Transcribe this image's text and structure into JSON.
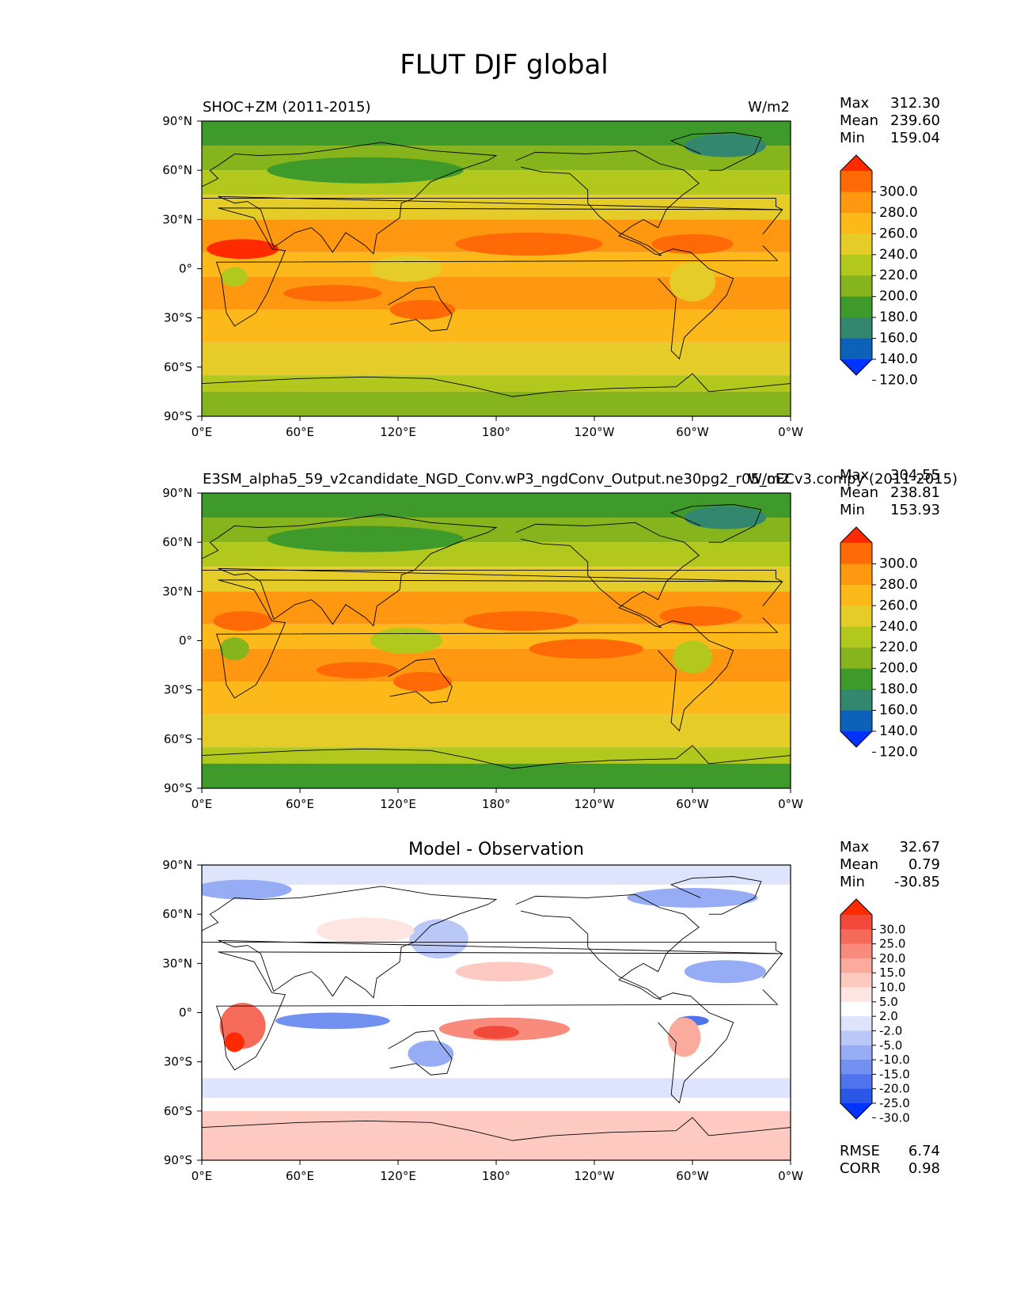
{
  "figure_title": "FLUT DJF global",
  "chart_data": [
    {
      "type": "heatmap",
      "title": "SHOC+ZM (2011-2015)",
      "units": "W/m2",
      "stats": {
        "max": "312.30",
        "mean": "239.60",
        "min": "159.04"
      },
      "colorbar": {
        "levels": [
          "300.0",
          "280.0",
          "260.0",
          "240.0",
          "220.0",
          "200.0",
          "180.0",
          "160.0",
          "140.0",
          "120.0"
        ],
        "colors": [
          "#ff2a00",
          "#ff6a06",
          "#ff9710",
          "#fdb81a",
          "#e6cc28",
          "#b2c81c",
          "#86b41c",
          "#3e9a2a",
          "#32876e",
          "#0b62b8",
          "#0033ff"
        ]
      },
      "xticks": [
        "0°E",
        "60°E",
        "120°E",
        "180°",
        "120°W",
        "60°W",
        "0°W"
      ],
      "yticks": [
        "90°N",
        "60°N",
        "30°N",
        "0°",
        "30°S",
        "60°S",
        "90°S"
      ],
      "xlim": [
        0,
        360
      ],
      "ylim": [
        -90,
        90
      ],
      "bands": [
        {
          "lat": [
            90,
            75
          ],
          "level": 7
        },
        {
          "lat": [
            75,
            60
          ],
          "level": 6
        },
        {
          "lat": [
            60,
            45
          ],
          "level": 5
        },
        {
          "lat": [
            45,
            30
          ],
          "level": 4
        },
        {
          "lat": [
            30,
            10
          ],
          "level": 2
        },
        {
          "lat": [
            10,
            -5
          ],
          "level": 3
        },
        {
          "lat": [
            -5,
            -25
          ],
          "level": 2
        },
        {
          "lat": [
            -25,
            -45
          ],
          "level": 3
        },
        {
          "lat": [
            -45,
            -65
          ],
          "level": 4
        },
        {
          "lat": [
            -65,
            -75
          ],
          "level": 5
        },
        {
          "lat": [
            -75,
            -90
          ],
          "level": 6
        }
      ],
      "blobs": [
        {
          "lon": 25,
          "lat": 12,
          "rlon": 22,
          "rlat": 6,
          "level": 0
        },
        {
          "lon": 200,
          "lat": 15,
          "rlon": 45,
          "rlat": 7,
          "level": 1
        },
        {
          "lon": 300,
          "lat": 15,
          "rlon": 25,
          "rlat": 6,
          "level": 1
        },
        {
          "lon": 80,
          "lat": -15,
          "rlon": 30,
          "rlat": 5,
          "level": 1
        },
        {
          "lon": 135,
          "lat": -25,
          "rlon": 20,
          "rlat": 6,
          "level": 1
        },
        {
          "lon": 125,
          "lat": 0,
          "rlon": 22,
          "rlat": 8,
          "level": 4
        },
        {
          "lon": 300,
          "lat": -8,
          "rlon": 14,
          "rlat": 12,
          "level": 4
        },
        {
          "lon": 20,
          "lat": -5,
          "rlon": 8,
          "rlat": 6,
          "level": 5
        },
        {
          "lon": 100,
          "lat": 60,
          "rlon": 60,
          "rlat": 8,
          "level": 7
        },
        {
          "lon": 320,
          "lat": 75,
          "rlon": 25,
          "rlat": 7,
          "level": 8
        }
      ]
    },
    {
      "type": "heatmap",
      "title": "E3SM_alpha5_59_v2candidate_NGD_Conv.wP3_ngdConv_Output.ne30pg2_r05_oECv3.compy (2011-2015)",
      "units": "W/m2",
      "stats": {
        "max": "304.55",
        "mean": "238.81",
        "min": "153.93"
      },
      "colorbar": {
        "levels": [
          "300.0",
          "280.0",
          "260.0",
          "240.0",
          "220.0",
          "200.0",
          "180.0",
          "160.0",
          "140.0",
          "120.0"
        ],
        "colors": [
          "#ff2a00",
          "#ff6a06",
          "#ff9710",
          "#fdb81a",
          "#e6cc28",
          "#b2c81c",
          "#86b41c",
          "#3e9a2a",
          "#32876e",
          "#0b62b8",
          "#0033ff"
        ]
      },
      "xticks": [
        "0°E",
        "60°E",
        "120°E",
        "180°",
        "120°W",
        "60°W",
        "0°W"
      ],
      "yticks": [
        "90°N",
        "60°N",
        "30°N",
        "0°",
        "30°S",
        "60°S",
        "90°S"
      ],
      "xlim": [
        0,
        360
      ],
      "ylim": [
        -90,
        90
      ],
      "bands": [
        {
          "lat": [
            90,
            75
          ],
          "level": 7
        },
        {
          "lat": [
            75,
            60
          ],
          "level": 6
        },
        {
          "lat": [
            60,
            45
          ],
          "level": 5
        },
        {
          "lat": [
            45,
            30
          ],
          "level": 4
        },
        {
          "lat": [
            30,
            10
          ],
          "level": 2
        },
        {
          "lat": [
            10,
            -5
          ],
          "level": 3
        },
        {
          "lat": [
            -5,
            -25
          ],
          "level": 2
        },
        {
          "lat": [
            -25,
            -45
          ],
          "level": 3
        },
        {
          "lat": [
            -45,
            -65
          ],
          "level": 4
        },
        {
          "lat": [
            -65,
            -75
          ],
          "level": 5
        },
        {
          "lat": [
            -75,
            -90
          ],
          "level": 7
        }
      ],
      "blobs": [
        {
          "lon": 25,
          "lat": 12,
          "rlon": 18,
          "rlat": 6,
          "level": 1
        },
        {
          "lon": 195,
          "lat": 12,
          "rlon": 35,
          "rlat": 6,
          "level": 1
        },
        {
          "lon": 305,
          "lat": 15,
          "rlon": 25,
          "rlat": 6,
          "level": 1
        },
        {
          "lon": 235,
          "lat": -5,
          "rlon": 35,
          "rlat": 6,
          "level": 1
        },
        {
          "lon": 95,
          "lat": -18,
          "rlon": 25,
          "rlat": 5,
          "level": 1
        },
        {
          "lon": 135,
          "lat": -25,
          "rlon": 18,
          "rlat": 6,
          "level": 1
        },
        {
          "lon": 125,
          "lat": 0,
          "rlon": 22,
          "rlat": 8,
          "level": 5
        },
        {
          "lon": 20,
          "lat": -5,
          "rlon": 9,
          "rlat": 7,
          "level": 6
        },
        {
          "lon": 300,
          "lat": -10,
          "rlon": 12,
          "rlat": 10,
          "level": 5
        },
        {
          "lon": 100,
          "lat": 62,
          "rlon": 60,
          "rlat": 8,
          "level": 7
        },
        {
          "lon": 320,
          "lat": 75,
          "rlon": 25,
          "rlat": 7,
          "level": 8
        }
      ]
    },
    {
      "type": "heatmap",
      "title": "Model - Observation",
      "units": "",
      "stats": {
        "max": "32.67",
        "mean": "0.79",
        "min": "-30.85"
      },
      "colorbar": {
        "levels": [
          "30.0",
          "25.0",
          "20.0",
          "15.0",
          "10.0",
          "5.0",
          "2.0",
          "-2.0",
          "-5.0",
          "-10.0",
          "-15.0",
          "-20.0",
          "-25.0",
          "-30.0"
        ],
        "colors": [
          "#ff2a00",
          "#f24a3a",
          "#f66a5a",
          "#f98b7c",
          "#fbab9e",
          "#fdc9c0",
          "#fde6e1",
          "#ffffff",
          "#dde4fb",
          "#bac8f8",
          "#96acf4",
          "#7290f0",
          "#4e73ec",
          "#2a57e8",
          "#0033ff"
        ]
      },
      "xticks": [
        "0°E",
        "60°E",
        "120°E",
        "180°",
        "120°W",
        "60°W",
        "0°W"
      ],
      "yticks": [
        "90°N",
        "60°N",
        "30°N",
        "0°",
        "30°S",
        "60°S",
        "90°S"
      ],
      "xlim": [
        0,
        360
      ],
      "ylim": [
        -90,
        90
      ],
      "rmse": "6.74",
      "corr": "0.98",
      "bands": [
        {
          "lat": [
            90,
            78
          ],
          "level": 8
        },
        {
          "lat": [
            78,
            25
          ],
          "level": 7
        },
        {
          "lat": [
            25,
            -40
          ],
          "level": 7
        },
        {
          "lat": [
            -40,
            -52
          ],
          "level": 8
        },
        {
          "lat": [
            -52,
            -60
          ],
          "level": 7
        },
        {
          "lat": [
            -60,
            -72
          ],
          "level": 5
        },
        {
          "lat": [
            -72,
            -90
          ],
          "level": 5
        }
      ],
      "blobs": [
        {
          "lon": 25,
          "lat": -8,
          "rlon": 14,
          "rlat": 14,
          "level": 2
        },
        {
          "lon": 20,
          "lat": -18,
          "rlon": 6,
          "rlat": 6,
          "level": 0
        },
        {
          "lon": 185,
          "lat": -10,
          "rlon": 40,
          "rlat": 7,
          "level": 3
        },
        {
          "lon": 180,
          "lat": -12,
          "rlon": 14,
          "rlat": 4,
          "level": 1
        },
        {
          "lon": 80,
          "lat": -5,
          "rlon": 35,
          "rlat": 5,
          "level": 11
        },
        {
          "lon": 300,
          "lat": -5,
          "rlon": 10,
          "rlat": 3,
          "level": 12
        },
        {
          "lon": 295,
          "lat": -15,
          "rlon": 10,
          "rlat": 12,
          "level": 4
        },
        {
          "lon": 320,
          "lat": 25,
          "rlon": 25,
          "rlat": 7,
          "level": 10
        },
        {
          "lon": 140,
          "lat": -25,
          "rlon": 14,
          "rlat": 8,
          "level": 10
        },
        {
          "lon": 145,
          "lat": 45,
          "rlon": 18,
          "rlat": 12,
          "level": 9
        },
        {
          "lon": 25,
          "lat": 75,
          "rlon": 30,
          "rlat": 6,
          "level": 10
        },
        {
          "lon": 300,
          "lat": 70,
          "rlon": 40,
          "rlat": 6,
          "level": 10
        },
        {
          "lon": 185,
          "lat": 25,
          "rlon": 30,
          "rlat": 6,
          "level": 5
        },
        {
          "lon": 100,
          "lat": 50,
          "rlon": 30,
          "rlat": 8,
          "level": 6
        }
      ]
    }
  ]
}
